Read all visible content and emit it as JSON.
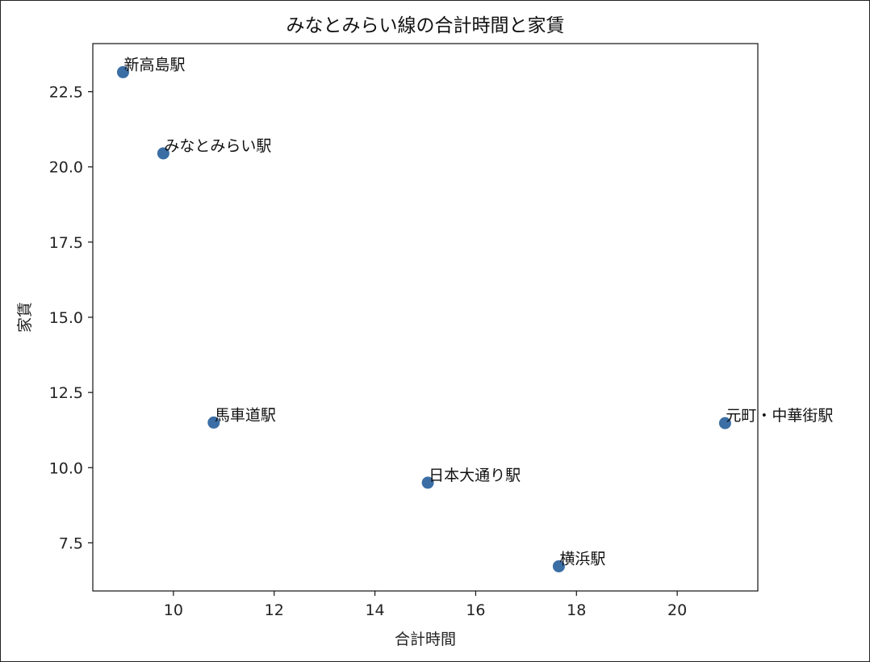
{
  "chart_data": {
    "type": "scatter",
    "title": "みなとみらい線の合計時間と家賃",
    "xlabel": "合計時間",
    "ylabel": "家賃",
    "xlim": [
      8.4,
      21.6
    ],
    "ylim": [
      5.9,
      24.1
    ],
    "xticks": [
      10,
      12,
      14,
      16,
      18,
      20
    ],
    "yticks": [
      7.5,
      10.0,
      12.5,
      15.0,
      17.5,
      20.0,
      22.5
    ],
    "xtick_labels": [
      "10",
      "12",
      "14",
      "16",
      "18",
      "20"
    ],
    "ytick_labels": [
      "7.5",
      "10.0",
      "12.5",
      "15.0",
      "17.5",
      "20.0",
      "22.5"
    ],
    "grid": false,
    "marker_color": "#3a6ea5",
    "points": [
      {
        "label": "新高島駅",
        "x": 9.0,
        "y": 23.15
      },
      {
        "label": "みなとみらい駅",
        "x": 9.8,
        "y": 20.45
      },
      {
        "label": "馬車道駅",
        "x": 10.8,
        "y": 11.5
      },
      {
        "label": "日本大通り駅",
        "x": 15.05,
        "y": 9.5
      },
      {
        "label": "横浜駅",
        "x": 17.65,
        "y": 6.72
      },
      {
        "label": "元町・中華街駅",
        "x": 20.95,
        "y": 11.48
      }
    ]
  }
}
